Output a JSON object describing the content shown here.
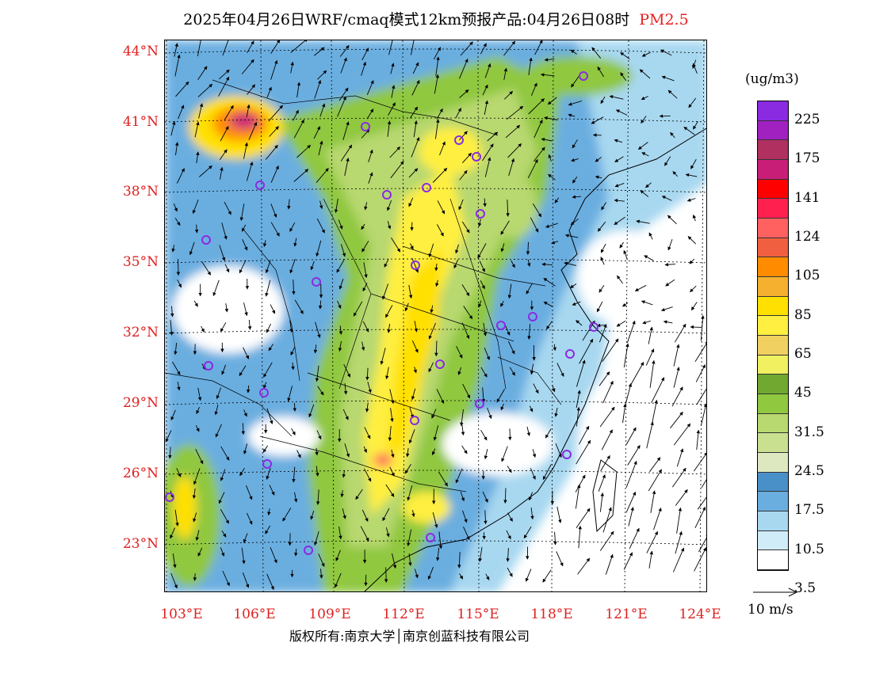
{
  "title": {
    "main": "2025年04月26日WRF/cmaq模式12km预报产品:04月26日08时",
    "pollutant": "PM2.5"
  },
  "lat_labels": [
    "44°N",
    "41°N",
    "38°N",
    "35°N",
    "32°N",
    "29°N",
    "26°N",
    "23°N"
  ],
  "lon_labels": [
    "103°E",
    "106°E",
    "109°E",
    "112°E",
    "115°E",
    "118°E",
    "121°E",
    "124°E"
  ],
  "colorbar": {
    "unit": "(ug/m3)",
    "labels": [
      "225",
      "175",
      "141",
      "124",
      "105",
      "85",
      "65",
      "45",
      "31.5",
      "24.5",
      "17.5",
      "10.5",
      "3.5"
    ],
    "colors": [
      "#8a2be2",
      "#a020c0",
      "#b03060",
      "#c81e78",
      "#ff0000",
      "#ff2050",
      "#ff6060",
      "#f06040",
      "#ff8c00",
      "#f5b030",
      "#ffe000",
      "#ffef40",
      "#f0d060",
      "#f0f060",
      "#70a830",
      "#90c840",
      "#b8d870",
      "#c8e090",
      "#dde8c0",
      "#4a90c8",
      "#6aaee0",
      "#a8d8f0",
      "#d0ecf8",
      "#ffffff"
    ]
  },
  "wind_reference": {
    "label": "10 m/s"
  },
  "copyright": "版权所有:南京大学│南京创蓝科技有限公司"
}
